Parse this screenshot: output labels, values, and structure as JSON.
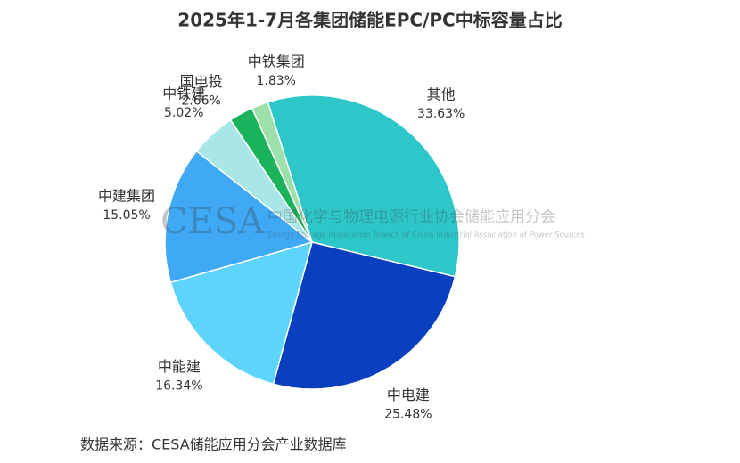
{
  "chart_data": {
    "type": "pie",
    "title": "2025年1-7月各集团储能EPC/PC中标容量占比",
    "categories": [
      "其他",
      "中电建",
      "中能建",
      "中建集团",
      "中铁建",
      "国电投",
      "中铁集团"
    ],
    "values": [
      33.63,
      25.48,
      16.34,
      15.05,
      5.02,
      2.66,
      1.83
    ],
    "value_labels": [
      "33.63%",
      "25.48%",
      "16.34%",
      "15.05%",
      "5.02%",
      "2.66%",
      "1.83%"
    ],
    "colors": [
      "#2ec7c9",
      "#0a3fbf",
      "#5dd4fb",
      "#3fa9f5",
      "#a9e6e6",
      "#1ab25a",
      "#9ee0a9"
    ],
    "watermark": {
      "logo": "CESA",
      "name": "中国化学与物理电源行业协会储能应用分会",
      "english": "Energy Storage Application Branch of China Industrial Association of Power Sources"
    },
    "source": "数据来源：CESA储能应用分会产业数据库"
  }
}
